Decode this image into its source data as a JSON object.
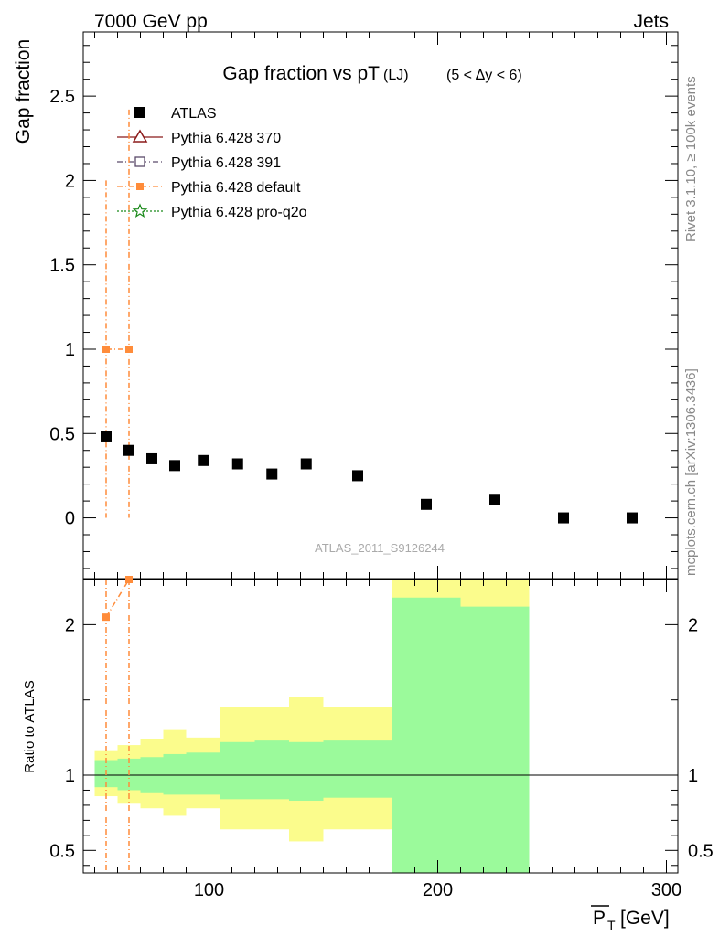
{
  "header": {
    "left": "7000 GeV pp",
    "right": "Jets"
  },
  "side_labels": {
    "top": "Rivet 3.1.10, ≥ 100k events",
    "bottom": "mcplots.cern.ch [arXiv:1306.3436]"
  },
  "chart_data": [
    {
      "type": "scatter",
      "title": "Gap fraction vs pT",
      "title_sub": "(LJ)",
      "title_cut": "(5 < Δy < 6)",
      "ylabel": "Gap fraction",
      "watermark": "ATLAS_2011_S9126244",
      "xlim": [
        45,
        305
      ],
      "ylim": [
        -0.36,
        2.88
      ],
      "y_ticks": [
        "0",
        "0.5",
        "1",
        "1.5",
        "2",
        "2.5"
      ],
      "legend": [
        {
          "name": "ATLAS",
          "color": "#000000",
          "marker": "square",
          "line": "none"
        },
        {
          "name": "Pythia 6.428 370",
          "color": "#8b1a1a",
          "marker": "triangle-open",
          "line": "solid"
        },
        {
          "name": "Pythia 6.428 391",
          "color": "#5a4a6a",
          "marker": "square-open",
          "line": "dashdot"
        },
        {
          "name": "Pythia 6.428 default",
          "color": "#ff8c3a",
          "marker": "square",
          "line": "dashdot"
        },
        {
          "name": "Pythia 6.428 pro-q2o",
          "color": "#1a8a1a",
          "marker": "star-open",
          "line": "dotted"
        }
      ],
      "series": [
        {
          "name": "ATLAS",
          "x": [
            55,
            65,
            75,
            85,
            97.5,
            112.5,
            127.5,
            142.5,
            165,
            195,
            225,
            255,
            285
          ],
          "y": [
            0.48,
            0.4,
            0.35,
            0.31,
            0.34,
            0.32,
            0.26,
            0.32,
            0.25,
            0.08,
            0.11,
            0.0,
            0.0
          ]
        },
        {
          "name": "Pythia 6.428 default",
          "x": [
            55,
            65
          ],
          "y": [
            1.0,
            1.0
          ],
          "y_err_low": [
            0.0,
            0.0
          ],
          "y_err_high": [
            2.0,
            2.42
          ]
        }
      ]
    },
    {
      "type": "area",
      "ylabel": "Ratio to ATLAS",
      "xlabel": "P_T [GeV]",
      "xlim": [
        45,
        305
      ],
      "ylim": [
        0.35,
        2.3
      ],
      "x_ticks": [
        "100",
        "200",
        "300"
      ],
      "y_ticks": [
        "0.5",
        "1",
        "2"
      ],
      "bands": {
        "edges": [
          50,
          60,
          70,
          80,
          90,
          105,
          120,
          135,
          150,
          180,
          210,
          240
        ],
        "inner_low": [
          0.92,
          0.9,
          0.88,
          0.87,
          0.87,
          0.84,
          0.84,
          0.83,
          0.85,
          0.35,
          0.35
        ],
        "inner_high": [
          1.1,
          1.11,
          1.12,
          1.14,
          1.15,
          1.22,
          1.23,
          1.22,
          1.23,
          2.18,
          2.12
        ],
        "outer_low": [
          0.86,
          0.81,
          0.78,
          0.73,
          0.78,
          0.64,
          0.64,
          0.56,
          0.64,
          0.35,
          0.35
        ],
        "outer_high": [
          1.16,
          1.2,
          1.24,
          1.3,
          1.25,
          1.45,
          1.45,
          1.52,
          1.45,
          2.3,
          2.3
        ]
      },
      "series": [
        {
          "name": "Pythia 6.428 default",
          "x": [
            55,
            65
          ],
          "y": [
            2.05,
            2.3
          ]
        }
      ],
      "colors": {
        "inner": "#9bfa9b",
        "outer": "#fbfc8c",
        "reference": "#000000",
        "mc": "#ff8c3a"
      }
    }
  ]
}
